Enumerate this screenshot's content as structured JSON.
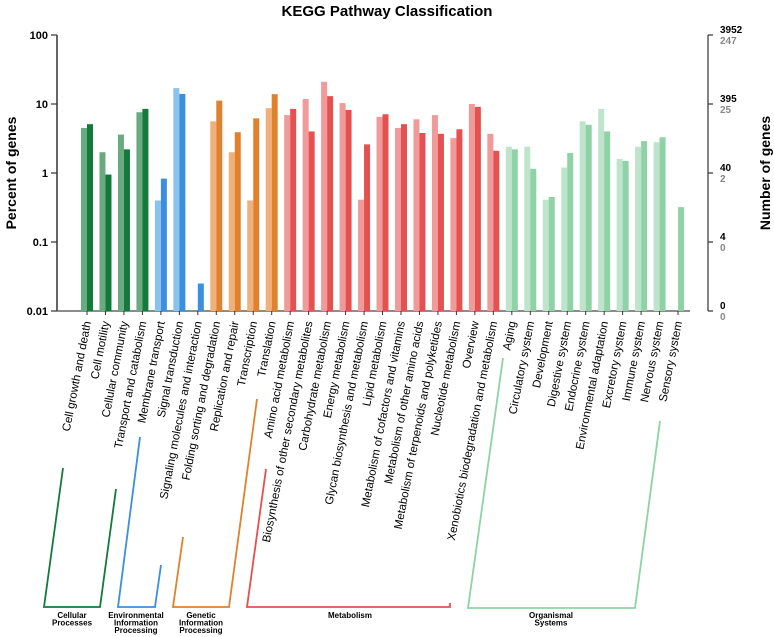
{
  "chart_data": {
    "type": "bar",
    "title": "KEGG Pathway Classification",
    "ylabel": "Percent of genes",
    "ylabel_right": "Number of genes",
    "yscale": "log",
    "ylim": [
      0.01,
      100
    ],
    "yticks": [
      "100",
      "10",
      "1",
      "0.1",
      "0.01"
    ],
    "ytick_values": [
      100,
      10,
      1,
      0.1,
      0.01
    ],
    "right_ticks": [
      {
        "primary": "3952",
        "secondary": "247"
      },
      {
        "primary": "395",
        "secondary": "25"
      },
      {
        "primary": "40",
        "secondary": "2"
      },
      {
        "primary": "4",
        "secondary": "0"
      },
      {
        "primary": "0",
        "secondary": "0"
      }
    ],
    "categories": [
      "Cell growth and death",
      "Cell motility",
      "Cellular community",
      "Transport and catabolism",
      "Membrane transport",
      "Signal transduction",
      "Signaling molecules and interaction",
      "Folding sorting and degradation",
      "Replication and repair",
      "Transcription",
      "Translation",
      "Amino acid metabolism",
      "Biosynthesis of other secondary metabolites",
      "Carbohydrate metabolism",
      "Energy metabolism",
      "Glycan biosynthesis and metabolism",
      "Lipid metabolism",
      "Metabolism of cofactors and vitamins",
      "Metabolism of other amino acids",
      "Metabolism of terpenoids and polyketides",
      "Nucleotide metabolism",
      "Overview",
      "Xenobiotics biodegradation and metabolism",
      "Aging",
      "Circulatory system",
      "Development",
      "Digestive system",
      "Endocrine system",
      "Environmental adaptation",
      "Excretory system",
      "Immune system",
      "Nervous system",
      "Sensory system"
    ],
    "series": [
      {
        "shade": "light",
        "values": [
          4.5,
          2.0,
          3.6,
          7.6,
          0.4,
          17,
          null,
          5.6,
          2.0,
          0.4,
          8.7,
          6.9,
          11.8,
          21,
          10.3,
          0.41,
          6.5,
          4.5,
          6.0,
          6.9,
          3.2,
          10,
          3.7,
          2.4,
          2.4,
          0.41,
          1.2,
          5.6,
          8.5,
          1.6,
          2.4,
          2.8,
          null
        ]
      },
      {
        "shade": "dark",
        "values": [
          5.1,
          0.95,
          2.2,
          8.5,
          0.83,
          14,
          0.025,
          11.2,
          3.9,
          6.2,
          13.9,
          8.5,
          4.0,
          13,
          8.2,
          2.6,
          7.1,
          5.1,
          3.8,
          3.7,
          4.3,
          9.1,
          2.1,
          2.2,
          1.15,
          0.45,
          1.95,
          5.0,
          4.0,
          1.5,
          2.9,
          3.3,
          0.32
        ]
      }
    ],
    "groups": [
      {
        "name": "Cellular Processes",
        "lines": [
          "Cellular",
          "Processes"
        ],
        "count": 4,
        "light": "#6aaa80",
        "dark": "#137a3c"
      },
      {
        "name": "Environmental Information Processing",
        "lines": [
          "Environmental",
          "Information",
          "Processing"
        ],
        "count": 3,
        "light": "#8cc3ee",
        "dark": "#3a8fde"
      },
      {
        "name": "Genetic Information Processing",
        "lines": [
          "Genetic",
          "Information",
          "Processing"
        ],
        "count": 4,
        "light": "#efb07c",
        "dark": "#e0812e"
      },
      {
        "name": "Metabolism",
        "lines": [
          "Metabolism"
        ],
        "count": 12,
        "light": "#f09a9a",
        "dark": "#e55050"
      },
      {
        "name": "Organismal Systems",
        "lines": [
          "Organismal",
          "Systems"
        ],
        "count": 10,
        "light": "#bfe4cc",
        "dark": "#8ed2a5"
      }
    ]
  }
}
